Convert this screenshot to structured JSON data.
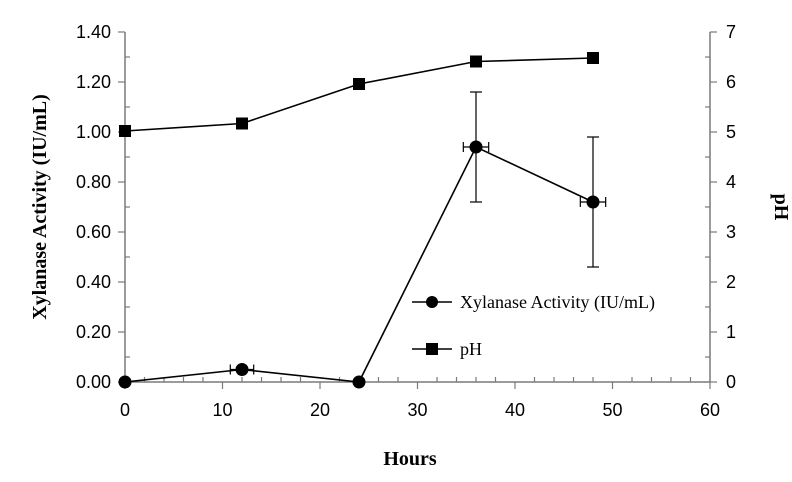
{
  "chart_data": {
    "type": "line",
    "xlabel": "Hours",
    "ylabel": "Xylanase Activity (IU/mL)",
    "y2label": "pH",
    "xlim": [
      0,
      60
    ],
    "ylim": [
      0,
      1.4
    ],
    "y2lim": [
      0,
      7
    ],
    "x_ticks": [
      "0",
      "10",
      "20",
      "30",
      "40",
      "50",
      "60"
    ],
    "y_ticks": [
      "0.00",
      "0.20",
      "0.40",
      "0.60",
      "0.80",
      "1.00",
      "1.20",
      "1.40"
    ],
    "y2_ticks": [
      "0",
      "1",
      "2",
      "3",
      "4",
      "5",
      "6",
      "7"
    ],
    "grid": false,
    "legend_position": "bottom-right",
    "series": [
      {
        "name": "Xylanase Activity (IU/mL)",
        "axis": "left",
        "marker": "circle",
        "x": [
          0,
          12,
          24,
          36,
          48
        ],
        "y": [
          0.0,
          0.05,
          0.0,
          0.94,
          0.72
        ],
        "y_err": [
          0,
          0,
          0,
          0.22,
          0.26
        ],
        "x_err": [
          0,
          1.2,
          0,
          1.3,
          1.3
        ]
      },
      {
        "name": "pH",
        "axis": "right",
        "marker": "square",
        "x": [
          0,
          12,
          24,
          36,
          48
        ],
        "y": [
          5.02,
          5.17,
          5.96,
          6.41,
          6.48
        ]
      }
    ]
  }
}
